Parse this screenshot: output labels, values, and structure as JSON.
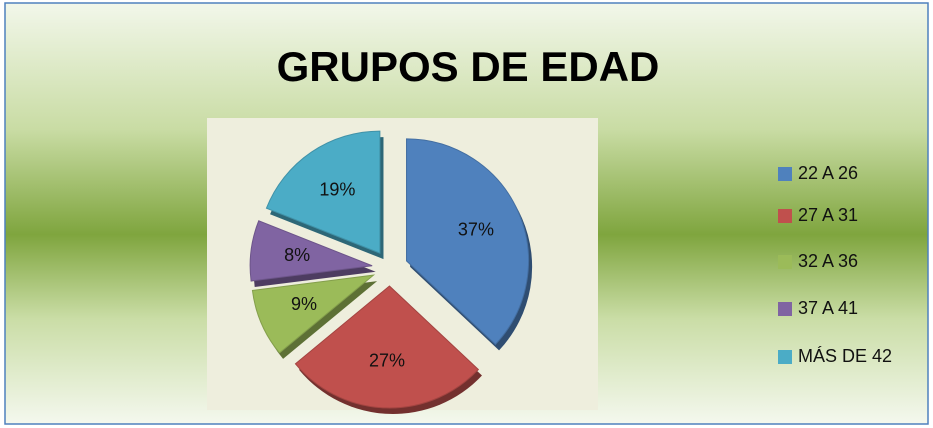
{
  "chart_data": {
    "type": "pie",
    "title": "GRUPOS DE EDAD",
    "categories": [
      "22 A 26",
      "27 A 31",
      "32 A 36",
      "37 A 41",
      "MÁS DE 42"
    ],
    "values": [
      37,
      27,
      9,
      8,
      19
    ],
    "value_labels": [
      "37%",
      "27%",
      "9%",
      "8%",
      "19%"
    ],
    "colors": [
      "#4f81bd",
      "#c0504d",
      "#9bbb59",
      "#8064a2",
      "#4bacc6"
    ],
    "legend": "right"
  }
}
